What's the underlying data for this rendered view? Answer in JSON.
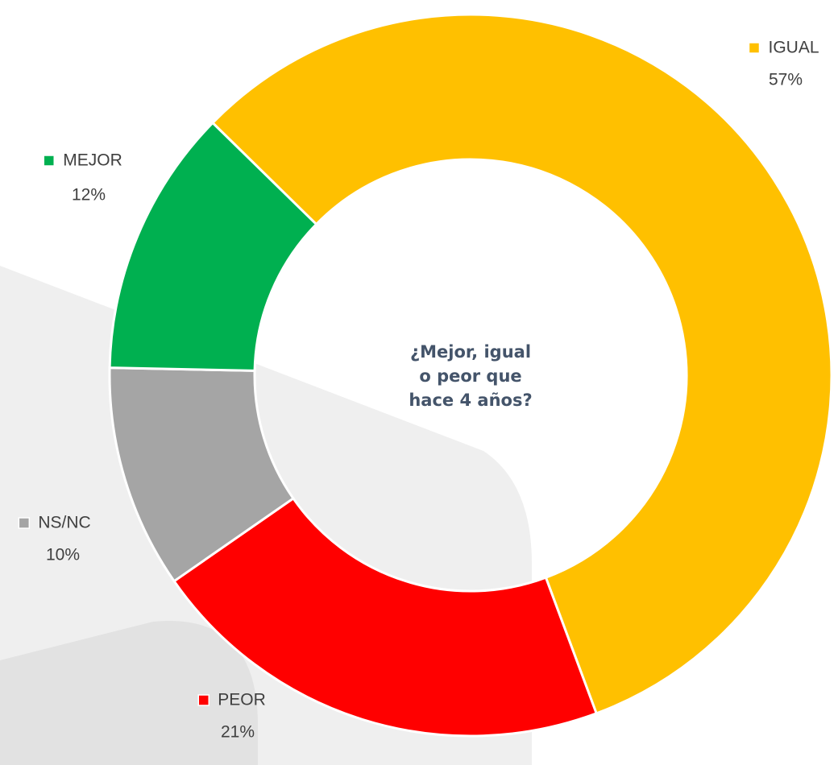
{
  "chart_data": {
    "type": "donut",
    "title": [
      "¿Mejor, igual",
      "o peor que",
      "hace 4 años?"
    ],
    "categories": [
      "IGUAL",
      "PEOR",
      "NS/NC",
      "MEJOR"
    ],
    "values": [
      57,
      21,
      10,
      12
    ],
    "value_labels": [
      "57%",
      "21%",
      "10%",
      "12%"
    ],
    "colors": [
      "#ffc000",
      "#ff0000",
      "#a5a5a5",
      "#00b050"
    ]
  }
}
